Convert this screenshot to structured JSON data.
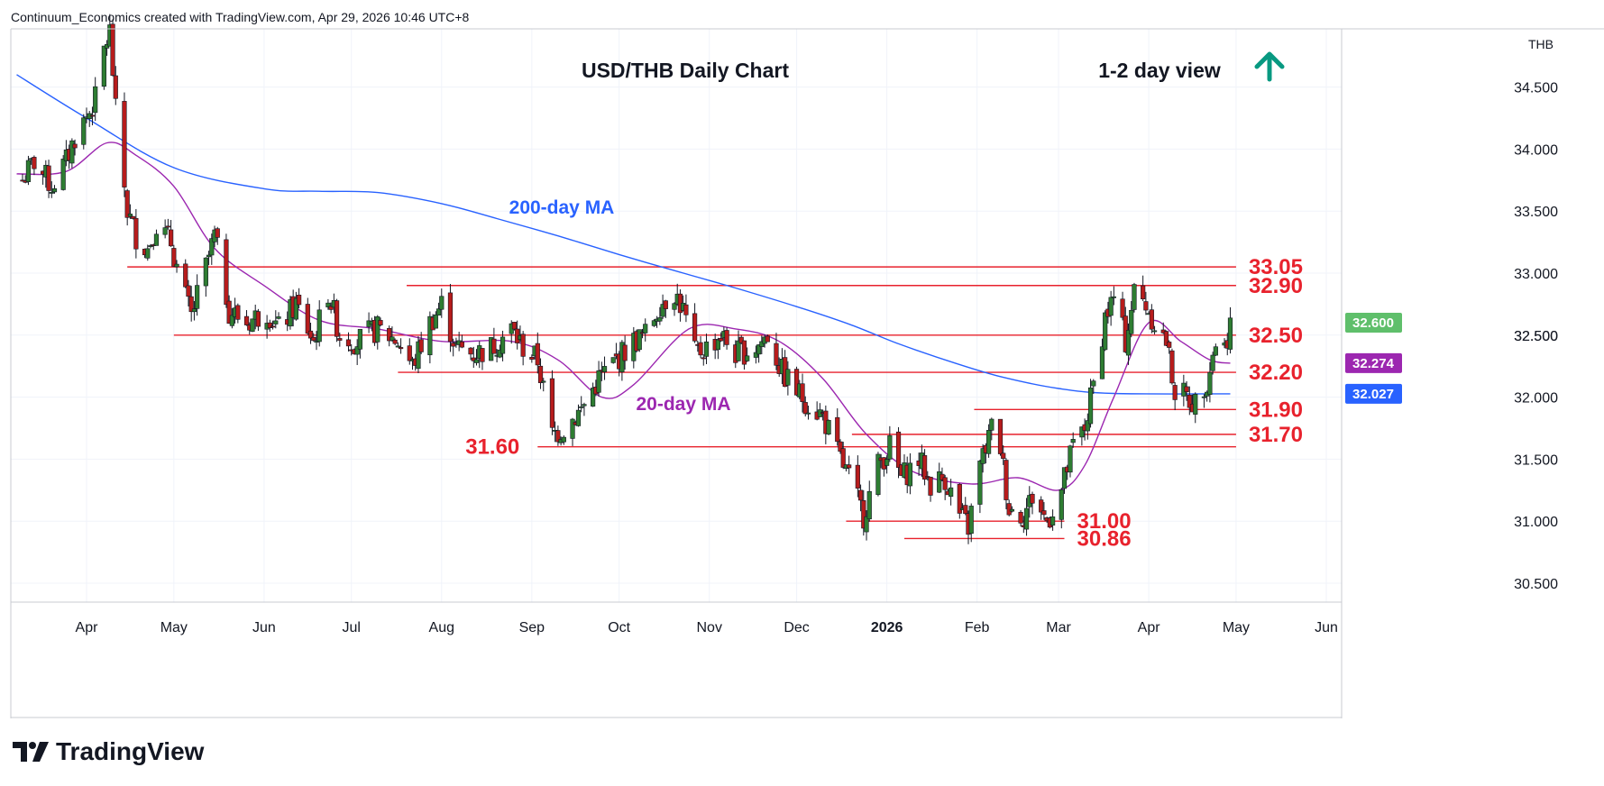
{
  "header": {
    "caption": "Continuum_Economics created with TradingView.com, Apr 29, 2026 10:46 UTC+8"
  },
  "brand": {
    "name": "TradingView",
    "logo_icon": "tradingview-logo-icon"
  },
  "colors": {
    "up_candle": "#2e7d32",
    "down_candle": "#b71c1c",
    "level_line": "#e8222d",
    "ma200": "#2962ff",
    "ma20": "#9c27b0",
    "arrow": "#089981",
    "price_badge": "#5fbf6b",
    "ma20_badge": "#9c27b0",
    "ma200_badge": "#2962ff",
    "grid": "#f0f3fa",
    "axis_border": "#c8cbd2"
  },
  "chart_data": {
    "type": "candlestick",
    "title": "USD/THB Daily Chart",
    "view_label": "1-2 day view",
    "view_icon": "up-arrow-icon",
    "currency": "THB",
    "ylim": [
      30.4,
      35.1
    ],
    "y_ticks": [
      "34.500",
      "34.000",
      "33.500",
      "33.000",
      "32.500",
      "32.000",
      "31.500",
      "31.000",
      "30.500"
    ],
    "x_start": "2025-03-08",
    "x_end": "2026-06-05",
    "x_ticks": [
      {
        "label": "Apr",
        "date": "2025-04-01",
        "bold": false
      },
      {
        "label": "May",
        "date": "2025-05-01",
        "bold": false
      },
      {
        "label": "Jun",
        "date": "2025-06-01",
        "bold": false
      },
      {
        "label": "Jul",
        "date": "2025-07-01",
        "bold": false
      },
      {
        "label": "Aug",
        "date": "2025-08-01",
        "bold": false
      },
      {
        "label": "Sep",
        "date": "2025-09-01",
        "bold": false
      },
      {
        "label": "Oct",
        "date": "2025-10-01",
        "bold": false
      },
      {
        "label": "Nov",
        "date": "2025-11-01",
        "bold": false
      },
      {
        "label": "Dec",
        "date": "2025-12-01",
        "bold": false
      },
      {
        "label": "2026",
        "date": "2026-01-01",
        "bold": true
      },
      {
        "label": "Feb",
        "date": "2026-02-01",
        "bold": false
      },
      {
        "label": "Mar",
        "date": "2026-03-01",
        "bold": false
      },
      {
        "label": "Apr",
        "date": "2026-04-01",
        "bold": false
      },
      {
        "label": "May",
        "date": "2026-05-01",
        "bold": false
      },
      {
        "label": "Jun",
        "date": "2026-06-01",
        "bold": false
      }
    ],
    "price_path": [
      [
        "2025-03-10",
        33.75
      ],
      [
        "2025-03-14",
        33.9
      ],
      [
        "2025-03-20",
        33.7
      ],
      [
        "2025-03-25",
        33.9
      ],
      [
        "2025-03-28",
        34.1
      ],
      [
        "2025-04-02",
        34.3
      ],
      [
        "2025-04-04",
        34.4
      ],
      [
        "2025-04-07",
        34.8
      ],
      [
        "2025-04-09",
        34.95
      ],
      [
        "2025-04-11",
        34.3
      ],
      [
        "2025-04-15",
        33.5
      ],
      [
        "2025-04-18",
        33.3
      ],
      [
        "2025-04-22",
        33.2
      ],
      [
        "2025-04-25",
        33.4
      ],
      [
        "2025-04-30",
        33.25
      ],
      [
        "2025-05-03",
        32.95
      ],
      [
        "2025-05-07",
        32.65
      ],
      [
        "2025-05-12",
        33.05
      ],
      [
        "2025-05-15",
        33.3
      ],
      [
        "2025-05-20",
        32.7
      ],
      [
        "2025-05-26",
        32.6
      ],
      [
        "2025-06-02",
        32.7
      ],
      [
        "2025-06-06",
        32.55
      ],
      [
        "2025-06-12",
        32.75
      ],
      [
        "2025-06-18",
        32.45
      ],
      [
        "2025-06-23",
        32.85
      ],
      [
        "2025-06-27",
        32.5
      ],
      [
        "2025-07-03",
        32.45
      ],
      [
        "2025-07-10",
        32.55
      ],
      [
        "2025-07-17",
        32.45
      ],
      [
        "2025-07-22",
        32.25
      ],
      [
        "2025-07-28",
        32.6
      ],
      [
        "2025-08-01",
        32.75
      ],
      [
        "2025-08-06",
        32.4
      ],
      [
        "2025-08-12",
        32.35
      ],
      [
        "2025-08-18",
        32.4
      ],
      [
        "2025-08-25",
        32.55
      ],
      [
        "2025-08-29",
        32.4
      ],
      [
        "2025-09-03",
        32.3
      ],
      [
        "2025-09-08",
        31.7
      ],
      [
        "2025-09-12",
        31.75
      ],
      [
        "2025-09-18",
        31.9
      ],
      [
        "2025-09-24",
        32.15
      ],
      [
        "2025-09-30",
        32.3
      ],
      [
        "2025-10-06",
        32.45
      ],
      [
        "2025-10-10",
        32.5
      ],
      [
        "2025-10-15",
        32.75
      ],
      [
        "2025-10-20",
        32.85
      ],
      [
        "2025-10-23",
        32.7
      ],
      [
        "2025-10-27",
        32.35
      ],
      [
        "2025-10-31",
        32.4
      ],
      [
        "2025-11-05",
        32.5
      ],
      [
        "2025-11-10",
        32.35
      ],
      [
        "2025-11-17",
        32.4
      ],
      [
        "2025-11-21",
        32.5
      ],
      [
        "2025-11-26",
        32.2
      ],
      [
        "2025-12-01",
        32.05
      ],
      [
        "2025-12-05",
        31.95
      ],
      [
        "2025-12-10",
        31.85
      ],
      [
        "2025-12-15",
        31.55
      ],
      [
        "2025-12-19",
        31.35
      ],
      [
        "2025-12-24",
        31.05
      ],
      [
        "2025-12-29",
        31.45
      ],
      [
        "2026-01-02",
        31.6
      ],
      [
        "2026-01-06",
        31.35
      ],
      [
        "2026-01-12",
        31.5
      ],
      [
        "2026-01-16",
        31.3
      ],
      [
        "2026-01-21",
        31.35
      ],
      [
        "2026-01-26",
        31.05
      ],
      [
        "2026-01-29",
        30.95
      ],
      [
        "2026-02-02",
        31.45
      ],
      [
        "2026-02-06",
        31.75
      ],
      [
        "2026-02-09",
        31.6
      ],
      [
        "2026-02-12",
        31.1
      ],
      [
        "2026-02-17",
        31.05
      ],
      [
        "2026-02-20",
        31.2
      ],
      [
        "2026-02-25",
        31.0
      ],
      [
        "2026-03-02",
        31.25
      ],
      [
        "2026-03-06",
        31.6
      ],
      [
        "2026-03-10",
        31.75
      ],
      [
        "2026-03-13",
        32.1
      ],
      [
        "2026-03-17",
        32.65
      ],
      [
        "2026-03-20",
        32.8
      ],
      [
        "2026-03-24",
        32.45
      ],
      [
        "2026-03-27",
        32.85
      ],
      [
        "2026-03-31",
        32.75
      ],
      [
        "2026-04-03",
        32.6
      ],
      [
        "2026-04-07",
        32.45
      ],
      [
        "2026-04-10",
        32.05
      ],
      [
        "2026-04-14",
        32.0
      ],
      [
        "2026-04-17",
        31.95
      ],
      [
        "2026-04-21",
        32.15
      ],
      [
        "2026-04-24",
        32.45
      ],
      [
        "2026-04-27",
        32.4
      ],
      [
        "2026-04-29",
        32.6
      ]
    ],
    "ma200_path": [
      [
        "2025-03-08",
        34.6
      ],
      [
        "2025-04-01",
        34.25
      ],
      [
        "2025-05-01",
        33.85
      ],
      [
        "2025-06-01",
        33.68
      ],
      [
        "2025-06-20",
        33.66
      ],
      [
        "2025-07-10",
        33.65
      ],
      [
        "2025-08-01",
        33.56
      ],
      [
        "2025-08-20",
        33.44
      ],
      [
        "2025-09-10",
        33.3
      ],
      [
        "2025-10-01",
        33.15
      ],
      [
        "2025-10-20",
        33.02
      ],
      [
        "2025-11-10",
        32.88
      ],
      [
        "2025-12-01",
        32.73
      ],
      [
        "2025-12-20",
        32.58
      ],
      [
        "2026-01-05",
        32.43
      ],
      [
        "2026-01-25",
        32.27
      ],
      [
        "2026-02-10",
        32.16
      ],
      [
        "2026-03-01",
        32.07
      ],
      [
        "2026-03-20",
        32.03
      ],
      [
        "2026-04-29",
        32.027
      ]
    ],
    "ma20_path": [
      [
        "2025-03-08",
        33.8
      ],
      [
        "2025-03-25",
        33.82
      ],
      [
        "2025-04-08",
        34.05
      ],
      [
        "2025-04-18",
        33.95
      ],
      [
        "2025-05-01",
        33.7
      ],
      [
        "2025-05-15",
        33.2
      ],
      [
        "2025-06-01",
        32.9
      ],
      [
        "2025-06-20",
        32.62
      ],
      [
        "2025-07-10",
        32.55
      ],
      [
        "2025-08-01",
        32.45
      ],
      [
        "2025-08-25",
        32.45
      ],
      [
        "2025-09-10",
        32.3
      ],
      [
        "2025-09-25",
        32.0
      ],
      [
        "2025-10-06",
        32.1
      ],
      [
        "2025-10-25",
        32.55
      ],
      [
        "2025-11-10",
        32.55
      ],
      [
        "2025-11-25",
        32.45
      ],
      [
        "2025-12-10",
        32.15
      ],
      [
        "2025-12-25",
        31.7
      ],
      [
        "2026-01-10",
        31.4
      ],
      [
        "2026-01-30",
        31.3
      ],
      [
        "2026-02-15",
        31.35
      ],
      [
        "2026-03-01",
        31.25
      ],
      [
        "2026-03-10",
        31.45
      ],
      [
        "2026-03-20",
        32.0
      ],
      [
        "2026-04-01",
        32.6
      ],
      [
        "2026-04-12",
        32.45
      ],
      [
        "2026-04-22",
        32.3
      ],
      [
        "2026-04-29",
        32.274
      ]
    ],
    "levels": [
      {
        "label": "33.05",
        "value": 33.05,
        "from": "2025-04-15",
        "to": "2026-05-01",
        "label_side": "right"
      },
      {
        "label": "32.90",
        "value": 32.9,
        "from": "2025-07-20",
        "to": "2026-05-01",
        "label_side": "right"
      },
      {
        "label": "32.50",
        "value": 32.5,
        "from": "2025-05-01",
        "to": "2026-05-01",
        "label_side": "right"
      },
      {
        "label": "32.20",
        "value": 32.2,
        "from": "2025-07-17",
        "to": "2026-05-01",
        "label_side": "right"
      },
      {
        "label": "31.90",
        "value": 31.9,
        "from": "2026-01-31",
        "to": "2026-05-01",
        "label_side": "right"
      },
      {
        "label": "31.70",
        "value": 31.7,
        "from": "2025-12-20",
        "to": "2026-05-01",
        "label_side": "right"
      },
      {
        "label": "31.60",
        "value": 31.6,
        "from": "2025-09-03",
        "to": "2026-05-01",
        "label_side": "left"
      },
      {
        "label": "31.00",
        "value": 31.0,
        "from": "2025-12-18",
        "to": "2026-03-03",
        "label_side": "right"
      },
      {
        "label": "30.86",
        "value": 30.86,
        "from": "2026-01-07",
        "to": "2026-03-03",
        "label_side": "right"
      }
    ],
    "annotations": {
      "ma200_label": "200-day MA",
      "ma20_label": "20-day MA"
    },
    "price_badges": [
      {
        "label": "32.600",
        "value": 32.6,
        "color": "#5fbf6b"
      },
      {
        "label": "32.274",
        "value": 32.274,
        "color": "#9c27b0"
      },
      {
        "label": "32.027",
        "value": 32.027,
        "color": "#2962ff"
      }
    ],
    "last_price_tick": "32.500"
  }
}
